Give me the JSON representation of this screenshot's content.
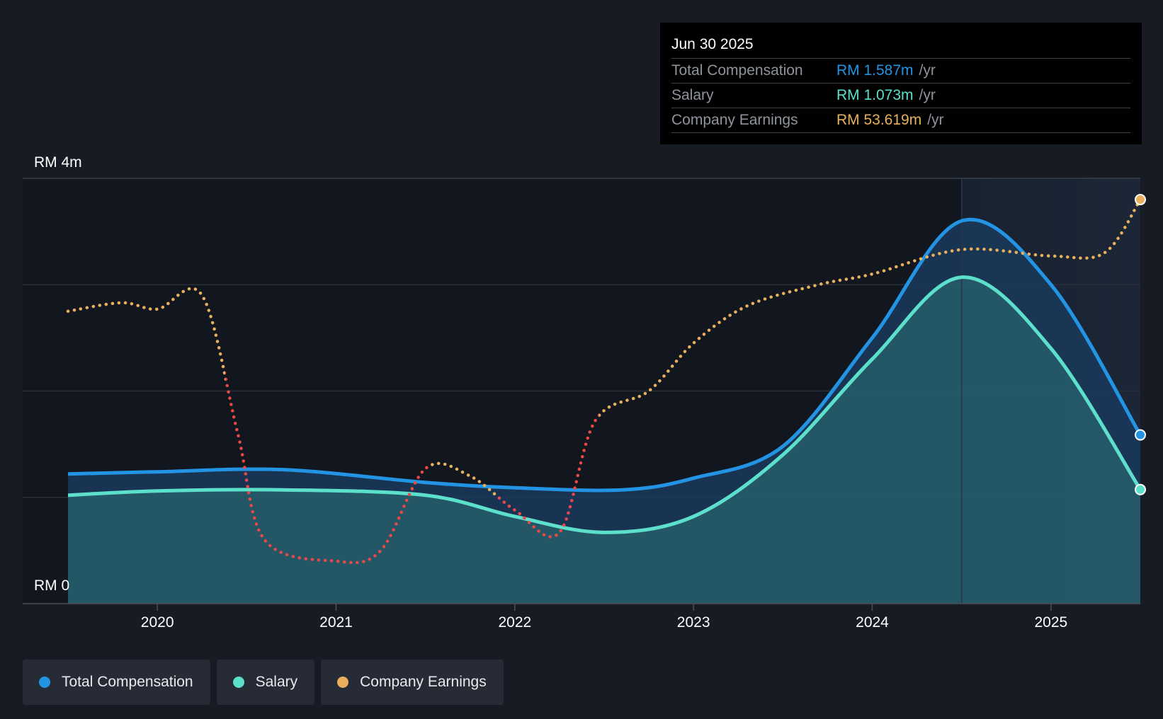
{
  "colors": {
    "total_compensation": "#2394e3",
    "salary": "#5ce0cc",
    "earnings_positive": "#e8b05c",
    "earnings_negative": "#e84848",
    "background": "#161b24",
    "plot_background": "#12161e"
  },
  "tooltip": {
    "date": "Jun 30 2025",
    "rows": [
      {
        "label": "Total Compensation",
        "value": "RM 1.587m",
        "unit": "/yr"
      },
      {
        "label": "Salary",
        "value": "RM 1.073m",
        "unit": "/yr"
      },
      {
        "label": "Company Earnings",
        "value": "RM 53.619m",
        "unit": "/yr"
      }
    ]
  },
  "legend": {
    "items": [
      {
        "label": "Total Compensation",
        "icon": "dot-icon"
      },
      {
        "label": "Salary",
        "icon": "dot-icon"
      },
      {
        "label": "Company Earnings",
        "icon": "dot-icon"
      }
    ]
  },
  "chart_data": {
    "type": "area",
    "title": "",
    "y_axis_labels": [
      "RM 4m",
      "RM 0"
    ],
    "ylim": [
      0,
      4
    ],
    "xlim": [
      2019.5,
      2025.5
    ],
    "x_ticks": [
      "2020",
      "2021",
      "2022",
      "2023",
      "2024",
      "2025"
    ],
    "x_tick_values": [
      2020,
      2021,
      2022,
      2023,
      2024,
      2025
    ],
    "highlight_range": [
      2024.5,
      2025.5
    ],
    "series": [
      {
        "name": "Total Compensation",
        "unit": "RM m/yr",
        "points": [
          [
            2019.5,
            1.22
          ],
          [
            2020.0,
            1.24
          ],
          [
            2020.7,
            1.26
          ],
          [
            2021.5,
            1.14
          ],
          [
            2022.0,
            1.09
          ],
          [
            2022.6,
            1.07
          ],
          [
            2023.0,
            1.18
          ],
          [
            2023.5,
            1.48
          ],
          [
            2024.0,
            2.5
          ],
          [
            2024.5,
            3.6
          ],
          [
            2025.0,
            3.0
          ],
          [
            2025.5,
            1.587
          ]
        ]
      },
      {
        "name": "Salary",
        "unit": "RM m/yr",
        "points": [
          [
            2019.5,
            1.02
          ],
          [
            2020.0,
            1.06
          ],
          [
            2020.7,
            1.07
          ],
          [
            2021.5,
            1.02
          ],
          [
            2022.0,
            0.82
          ],
          [
            2022.5,
            0.67
          ],
          [
            2023.0,
            0.82
          ],
          [
            2023.5,
            1.4
          ],
          [
            2024.0,
            2.3
          ],
          [
            2024.5,
            3.07
          ],
          [
            2025.0,
            2.4
          ],
          [
            2025.5,
            1.073
          ]
        ]
      },
      {
        "name": "Company Earnings",
        "unit": "RM m/yr (scaled to chart)",
        "points": [
          [
            2019.5,
            2.75
          ],
          [
            2019.8,
            2.83
          ],
          [
            2020.0,
            2.77
          ],
          [
            2020.25,
            2.9
          ],
          [
            2020.45,
            1.6
          ],
          [
            2020.6,
            0.6
          ],
          [
            2021.0,
            0.4
          ],
          [
            2021.25,
            0.5
          ],
          [
            2021.5,
            1.27
          ],
          [
            2021.75,
            1.2
          ],
          [
            2022.0,
            0.88
          ],
          [
            2022.25,
            0.67
          ],
          [
            2022.45,
            1.72
          ],
          [
            2022.75,
            2.0
          ],
          [
            2023.0,
            2.45
          ],
          [
            2023.3,
            2.8
          ],
          [
            2023.7,
            3.0
          ],
          [
            2024.0,
            3.1
          ],
          [
            2024.5,
            3.33
          ],
          [
            2025.0,
            3.27
          ],
          [
            2025.3,
            3.3
          ],
          [
            2025.5,
            3.8
          ]
        ],
        "negative_ranges": [
          [
            2020.38,
            2021.52
          ],
          [
            2021.9,
            2022.47
          ]
        ]
      }
    ]
  }
}
